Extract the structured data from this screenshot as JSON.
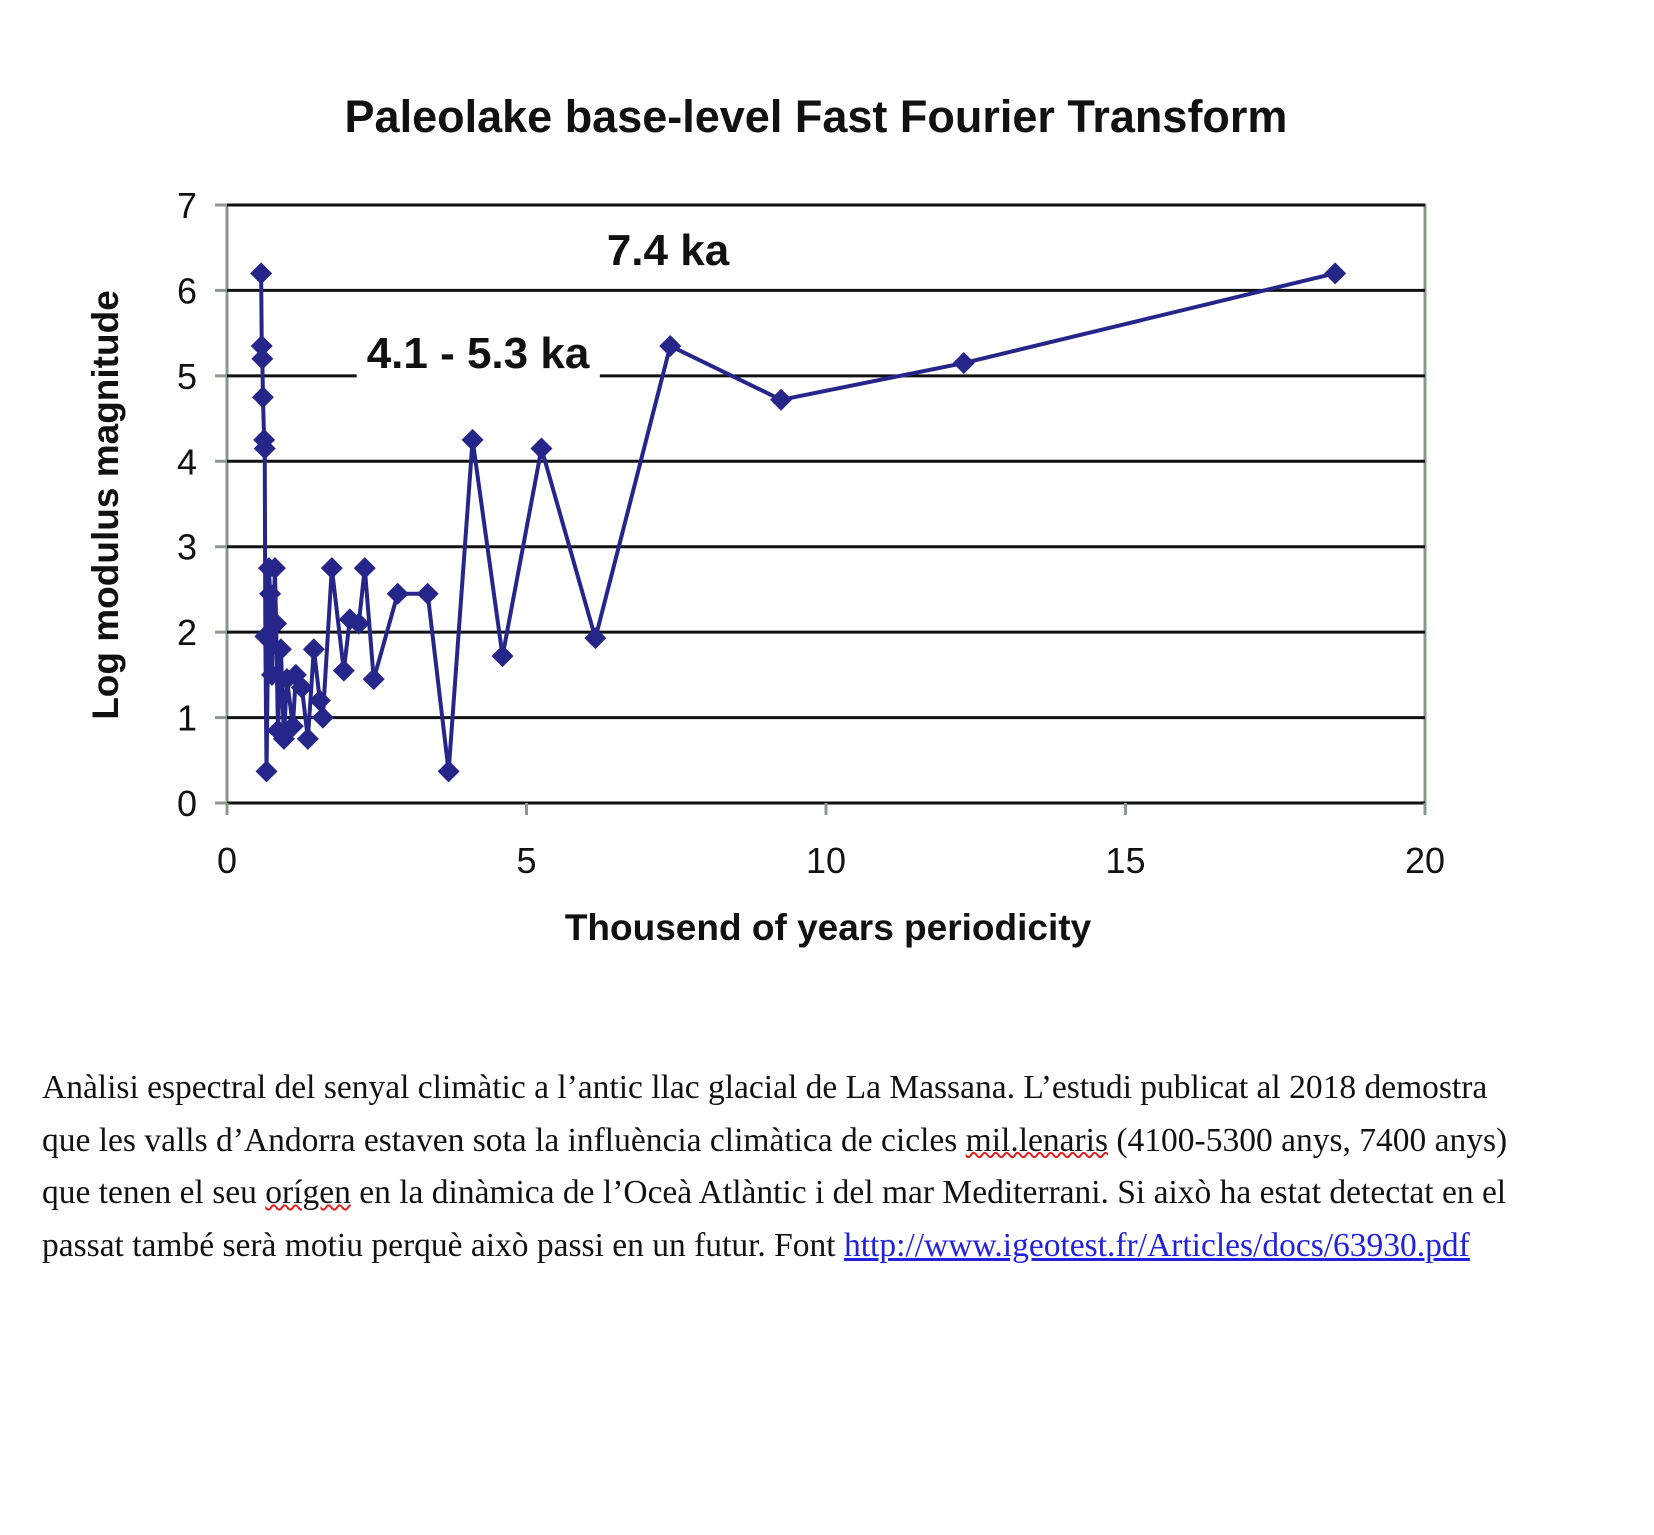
{
  "chart_data": {
    "type": "line",
    "title": "Paleolake base-level Fast Fourier Transform",
    "x_label": "Thousend of years periodicity",
    "y_label": "Log modulus  magnitude",
    "x": [
      0.57,
      0.58,
      0.59,
      0.6,
      0.62,
      0.63,
      0.64,
      0.66,
      0.7,
      0.72,
      0.75,
      0.8,
      0.82,
      0.85,
      0.9,
      0.95,
      1.0,
      1.1,
      1.15,
      1.25,
      1.35,
      1.45,
      1.55,
      1.6,
      1.75,
      1.95,
      2.05,
      2.2,
      2.3,
      2.45,
      2.85,
      3.35,
      3.7,
      4.1,
      4.6,
      5.25,
      6.15,
      7.4,
      9.25,
      12.3,
      18.5
    ],
    "values": [
      6.2,
      5.35,
      5.2,
      4.75,
      4.25,
      4.15,
      1.95,
      0.37,
      2.75,
      2.45,
      1.5,
      2.75,
      2.1,
      0.85,
      1.8,
      0.75,
      1.45,
      0.9,
      1.5,
      1.35,
      0.75,
      1.8,
      1.2,
      1.0,
      2.75,
      1.55,
      2.15,
      2.1,
      2.75,
      1.45,
      2.45,
      2.45,
      0.37,
      4.25,
      1.72,
      4.15,
      1.93,
      5.35,
      4.72,
      5.15,
      6.2
    ],
    "color": "#26268a",
    "xlim": [
      0,
      20
    ],
    "xticks": [
      0,
      5,
      10,
      15,
      20
    ],
    "ylim": [
      0,
      7
    ],
    "yticks": [
      0,
      1,
      2,
      3,
      4,
      5,
      6,
      7
    ],
    "grid": true,
    "annotations": [
      "7.4 ka",
      "4.1 - 5.3 ka"
    ]
  },
  "caption": {
    "parts": [
      "Anàlisi espectral del senyal climàtic a l’antic llac glacial de La Massana. L’estudi publicat al 2018 demostra que les valls d’Andorra estaven sota la influència climàtica de cicles ",
      "mil.lenaris",
      " (4100-5300 anys, 7400 anys) que tenen el seu ",
      "orígen",
      " en la dinàmica de l’Oceà Atlàntic i del mar Mediterrani. Si això ha estat detectat en el passat també serà motiu perquè això passi en un futur. Font "
    ],
    "link": "http://www.igeotest.fr/Articles/docs/63930.pdf"
  }
}
